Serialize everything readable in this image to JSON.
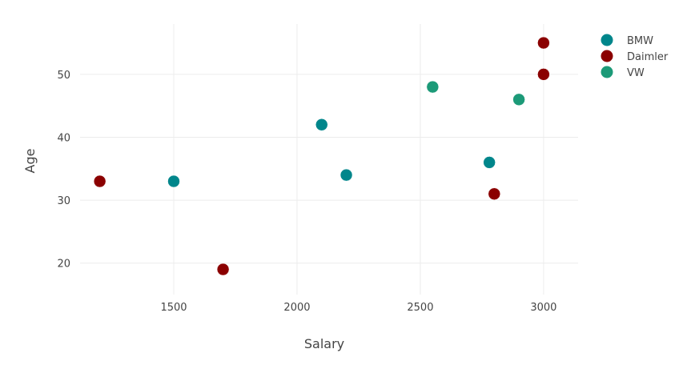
{
  "chart_data": {
    "type": "scatter",
    "title": "",
    "xlabel": "Salary",
    "ylabel": "Age",
    "xlim": [
      1120,
      3140
    ],
    "ylim": [
      15,
      58
    ],
    "xticks": [
      1500,
      2000,
      2500,
      3000
    ],
    "yticks": [
      20,
      30,
      40,
      50
    ],
    "grid": true,
    "legend_position": "top-right",
    "series": [
      {
        "name": "BMW",
        "color": "#00868b",
        "points": [
          {
            "x": 1500,
            "y": 33
          },
          {
            "x": 2100,
            "y": 42
          },
          {
            "x": 2200,
            "y": 34
          },
          {
            "x": 2780,
            "y": 36
          }
        ]
      },
      {
        "name": "Daimler",
        "color": "#8b0000",
        "points": [
          {
            "x": 1200,
            "y": 33
          },
          {
            "x": 1700,
            "y": 19
          },
          {
            "x": 2800,
            "y": 31
          },
          {
            "x": 3000,
            "y": 50
          },
          {
            "x": 3000,
            "y": 55
          }
        ]
      },
      {
        "name": "VW",
        "color": "#1c9a78",
        "points": [
          {
            "x": 2550,
            "y": 48
          },
          {
            "x": 2900,
            "y": 46
          }
        ]
      }
    ]
  }
}
